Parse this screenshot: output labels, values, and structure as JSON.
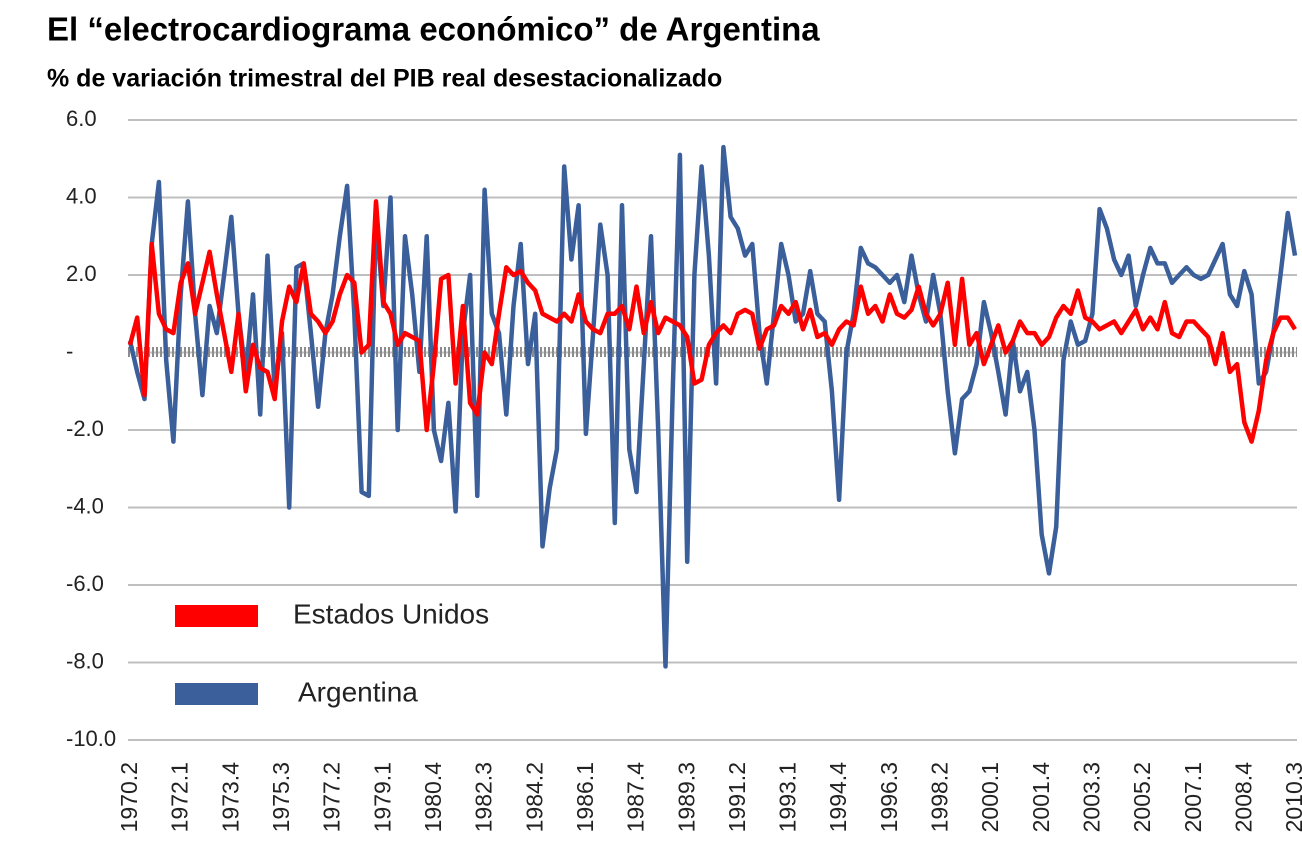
{
  "chart_data": {
    "type": "line",
    "title": "El “electrocardiograma económico” de Argentina",
    "subtitle": "% de variación trimestral del PIB real desestacionalizado",
    "categories": [
      "1970.2",
      null,
      null,
      null,
      null,
      null,
      null,
      "1972.1",
      null,
      null,
      null,
      null,
      null,
      null,
      "1973.4",
      null,
      null,
      null,
      null,
      null,
      null,
      "1975.3",
      null,
      null,
      null,
      null,
      null,
      null,
      "1977.2",
      null,
      null,
      null,
      null,
      null,
      null,
      "1979.1",
      null,
      null,
      null,
      null,
      null,
      null,
      "1980.4",
      null,
      null,
      null,
      null,
      null,
      null,
      "1982.3",
      null,
      null,
      null,
      null,
      null,
      null,
      "1984.2",
      null,
      null,
      null,
      null,
      null,
      null,
      "1986.1",
      null,
      null,
      null,
      null,
      null,
      null,
      "1987.4",
      null,
      null,
      null,
      null,
      null,
      null,
      "1989.3",
      null,
      null,
      null,
      null,
      null,
      null,
      "1991.2",
      null,
      null,
      null,
      null,
      null,
      null,
      "1993.1",
      null,
      null,
      null,
      null,
      null,
      null,
      "1994.4",
      null,
      null,
      null,
      null,
      null,
      null,
      "1996.3",
      null,
      null,
      null,
      null,
      null,
      null,
      "1998.2",
      null,
      null,
      null,
      null,
      null,
      null,
      "2000.1",
      null,
      null,
      null,
      null,
      null,
      null,
      "2001.4",
      null,
      null,
      null,
      null,
      null,
      null,
      "2003.3",
      null,
      null,
      null,
      null,
      null,
      null,
      "2005.2",
      null,
      null,
      null,
      null,
      null,
      null,
      "2007.1",
      null,
      null,
      null,
      null,
      null,
      null,
      "2008.4",
      null,
      null,
      null,
      null,
      null,
      null,
      "2010.3"
    ],
    "series": [
      {
        "name": "Estados Unidos",
        "color": "#ff0000",
        "values": [
          0.2,
          0.9,
          -1.1,
          2.8,
          1.0,
          0.6,
          0.5,
          1.8,
          2.3,
          1.0,
          1.8,
          2.6,
          1.5,
          0.5,
          -0.5,
          1.0,
          -1.0,
          0.2,
          -0.4,
          -0.5,
          -1.2,
          0.8,
          1.7,
          1.3,
          2.3,
          1.0,
          0.8,
          0.5,
          0.8,
          1.5,
          2.0,
          1.8,
          0.0,
          0.2,
          3.9,
          1.3,
          1.0,
          0.2,
          0.5,
          0.4,
          0.3,
          -2.0,
          -0.3,
          1.9,
          2.0,
          -0.8,
          1.2,
          -1.3,
          -1.6,
          0.0,
          -0.3,
          1.0,
          2.2,
          2.0,
          2.1,
          1.8,
          1.6,
          1.0,
          0.9,
          0.8,
          1.0,
          0.8,
          1.5,
          0.8,
          0.6,
          0.5,
          1.0,
          1.0,
          1.2,
          0.6,
          1.7,
          0.5,
          1.3,
          0.5,
          0.9,
          0.8,
          0.7,
          0.4,
          -0.8,
          -0.7,
          0.2,
          0.5,
          0.7,
          0.5,
          1.0,
          1.1,
          1.0,
          0.1,
          0.6,
          0.7,
          1.2,
          1.0,
          1.3,
          0.6,
          1.1,
          0.4,
          0.5,
          0.2,
          0.6,
          0.8,
          0.7,
          1.7,
          1.0,
          1.2,
          0.8,
          1.5,
          1.0,
          0.9,
          1.1,
          1.7,
          1.0,
          0.7,
          1.0,
          1.8,
          0.2,
          1.9,
          0.2,
          0.5,
          -0.3,
          0.2,
          0.7,
          0.0,
          0.3,
          0.8,
          0.5,
          0.5,
          0.2,
          0.4,
          0.9,
          1.2,
          1.0,
          1.6,
          0.9,
          0.8,
          0.6,
          0.7,
          0.8,
          0.5,
          0.8,
          1.1,
          0.6,
          0.9,
          0.6,
          1.3,
          0.5,
          0.4,
          0.8,
          0.8,
          0.6,
          0.4,
          -0.3,
          0.5,
          -0.5,
          -0.3,
          -1.8,
          -2.3,
          -1.5,
          -0.2,
          0.5,
          0.9,
          0.9,
          0.6
        ]
      },
      {
        "name": "Argentina",
        "color": "#3a5f9a",
        "values": [
          0.3,
          -0.5,
          -1.2,
          2.8,
          4.4,
          -0.2,
          -2.3,
          1.5,
          3.9,
          1.0,
          -1.1,
          1.2,
          0.5,
          2.0,
          3.5,
          1.0,
          -0.6,
          1.5,
          -1.6,
          2.5,
          -1.0,
          0.5,
          -4.0,
          2.2,
          2.3,
          0.5,
          -1.4,
          0.5,
          1.5,
          3.0,
          4.3,
          1.0,
          -3.6,
          -3.7,
          3.5,
          1.2,
          4.0,
          -2.0,
          3.0,
          1.5,
          -0.5,
          3.0,
          -2.0,
          -2.8,
          -1.3,
          -4.1,
          0.5,
          2.0,
          -3.7,
          4.2,
          1.0,
          0.5,
          -1.6,
          1.2,
          2.8,
          -0.3,
          1.0,
          -5.0,
          -3.5,
          -2.5,
          4.8,
          2.4,
          3.8,
          -2.1,
          0.5,
          3.3,
          2.0,
          -4.4,
          3.8,
          -2.5,
          -3.6,
          -0.3,
          3.0,
          -2.0,
          -8.1,
          -1.0,
          5.1,
          -5.4,
          2.0,
          4.8,
          2.5,
          -0.8,
          5.3,
          3.5,
          3.2,
          2.5,
          2.8,
          0.5,
          -0.8,
          1.0,
          2.8,
          2.0,
          0.8,
          1.0,
          2.1,
          1.0,
          0.8,
          -1.0,
          -3.8,
          0.0,
          1.0,
          2.7,
          2.3,
          2.2,
          2.0,
          1.8,
          2.0,
          1.3,
          2.5,
          1.5,
          0.8,
          2.0,
          1.0,
          -1.0,
          -2.6,
          -1.2,
          -1.0,
          -0.3,
          1.3,
          0.5,
          -0.5,
          -1.6,
          0.3,
          -1.0,
          -0.5,
          -2.0,
          -4.7,
          -5.7,
          -4.5,
          -0.2,
          0.8,
          0.2,
          0.3,
          1.0,
          3.7,
          3.2,
          2.4,
          2.0,
          2.5,
          1.2,
          2.0,
          2.7,
          2.3,
          2.3,
          1.8,
          2.0,
          2.2,
          2.0,
          1.9,
          2.0,
          2.4,
          2.8,
          1.5,
          1.2,
          2.1,
          1.5,
          -0.8,
          -0.5,
          0.5,
          2.0,
          3.6,
          2.5
        ]
      }
    ],
    "ylim": [
      -10,
      6
    ],
    "yticks": [
      {
        "value": -10,
        "label": "-10.0"
      },
      {
        "value": -8,
        "label": "-8.0"
      },
      {
        "value": -6,
        "label": "-6.0"
      },
      {
        "value": -4,
        "label": "-4.0"
      },
      {
        "value": -2,
        "label": "-2.0"
      },
      {
        "value": 0,
        "label": "-"
      },
      {
        "value": 2,
        "label": "2.0"
      },
      {
        "value": 4,
        "label": "4.0"
      },
      {
        "value": 6,
        "label": "6.0"
      }
    ],
    "grid": true,
    "legend": "lower left"
  }
}
